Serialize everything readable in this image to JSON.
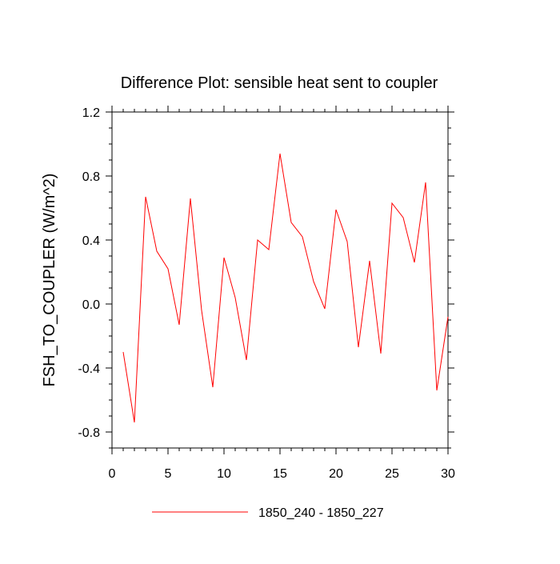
{
  "chart_data": {
    "type": "line",
    "title": "Difference Plot: sensible heat sent to coupler",
    "xlabel": "",
    "ylabel": "FSH_TO_COUPLER  (W/m^2)",
    "xlim": [
      0,
      30
    ],
    "ylim": [
      -0.9,
      1.2
    ],
    "x_major_ticks": [
      0,
      5,
      10,
      15,
      20,
      25,
      30
    ],
    "x_tick_labels": [
      "0",
      "5",
      "10",
      "15",
      "20",
      "25",
      "30"
    ],
    "x_minor_step": 1,
    "y_major_ticks": [
      -0.8,
      -0.4,
      0.0,
      0.4,
      0.8,
      1.2
    ],
    "y_tick_labels": [
      "-0.8",
      "-0.4",
      "0.0",
      "0.4",
      "0.8",
      "1.2"
    ],
    "y_minor_step": 0.1,
    "grid": false,
    "legend_position": "bottom-center",
    "series": [
      {
        "name": "1850_240 - 1850_227",
        "color": "#ff0000",
        "x": [
          1,
          2,
          3,
          4,
          5,
          6,
          7,
          8,
          9,
          10,
          11,
          12,
          13,
          14,
          15,
          16,
          17,
          18,
          19,
          20,
          21,
          22,
          23,
          24,
          25,
          26,
          27,
          28,
          29,
          30
        ],
        "values": [
          -0.3,
          -0.74,
          0.67,
          0.33,
          0.22,
          -0.13,
          0.66,
          -0.04,
          -0.52,
          0.29,
          0.04,
          -0.35,
          0.4,
          0.34,
          0.94,
          0.51,
          0.42,
          0.14,
          -0.03,
          0.59,
          0.39,
          -0.27,
          0.27,
          -0.31,
          0.63,
          0.54,
          0.26,
          0.76,
          -0.54,
          -0.08
        ]
      }
    ]
  }
}
